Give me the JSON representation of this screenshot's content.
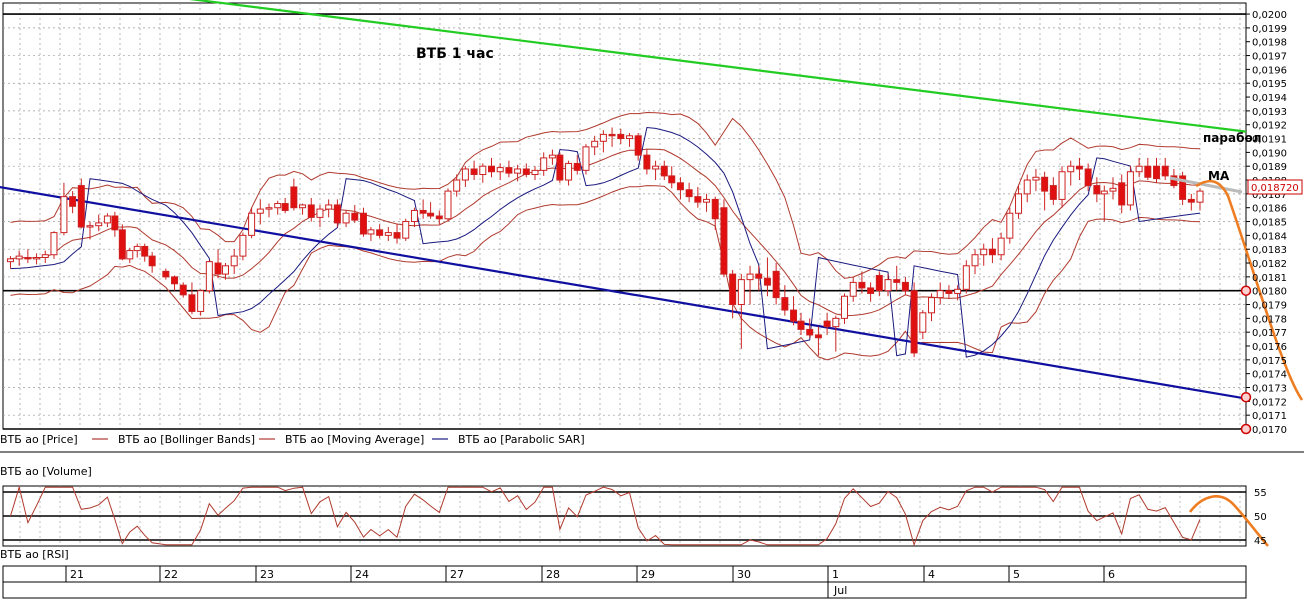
{
  "chart_data": {
    "type": "candlestick",
    "title": "ВТБ   1 час",
    "price_axis": {
      "ylim": [
        0.017,
        0.02008
      ],
      "tick_labels": [
        "0,0200",
        "0,0199",
        "0,0198",
        "0,0197",
        "0,0196",
        "0,0195",
        "0,0194",
        "0,0193",
        "0,0192",
        "0,0191",
        "0,0190",
        "0,0189",
        "0,0188",
        "0,0187",
        "0,0186",
        "0,0185",
        "0,0184",
        "0,0183",
        "0,0182",
        "0,0181",
        "0,0180",
        "0,0179",
        "0,0178",
        "0,0177",
        "0,0176",
        "0,0175",
        "0,0174",
        "0,0173",
        "0,0172",
        "0,0171",
        "0,0170"
      ],
      "current_price_label": "0,018720",
      "current_price": 0.01872
    },
    "horizontal_levels": [
      0.02,
      0.018,
      0.017
    ],
    "trendlines": [
      {
        "color": "#22cc22",
        "from": [
          -0.01,
          0.02029
        ],
        "to": [
          1.0,
          0.01915
        ]
      },
      {
        "color": "#1010a0",
        "from": [
          -0.01,
          0.01876
        ],
        "to": [
          1.0,
          0.01722
        ]
      }
    ],
    "annotations": [
      {
        "text": "парабол",
        "price": 0.01907
      },
      {
        "text": "MA",
        "price": 0.01888
      }
    ],
    "legend": [
      {
        "label": "ВТБ ао [Price]",
        "color": "#cc3333"
      },
      {
        "label": "ВТБ ао [Bollinger Bands]",
        "color": "#b03a2e"
      },
      {
        "label": "ВТБ ао [Moving Average]",
        "color": "#b03a2e"
      },
      {
        "label": "ВТБ ао [Parabolic SAR]",
        "color": "#1a1a80"
      }
    ],
    "volume_pane_label": "ВТБ ао [Volume]",
    "rsi_pane_label": "ВТБ ао [RSI]",
    "rsi_axis": {
      "ylim": [
        45,
        55
      ],
      "tick_labels": [
        "55",
        "50",
        "45"
      ]
    },
    "rsi_levels": [
      55,
      50,
      45
    ],
    "x_labels": [
      "21",
      "22",
      "23",
      "24",
      "27",
      "28",
      "29",
      "30",
      "1",
      "4",
      "5",
      "6"
    ],
    "x_sub_label": "Jul",
    "candles": [
      {
        "x": 0.006,
        "o": 0.01821,
        "h": 0.01825,
        "l": 0.01816,
        "c": 0.01823
      },
      {
        "x": 0.013,
        "o": 0.01823,
        "h": 0.01829,
        "l": 0.01818,
        "c": 0.01825
      },
      {
        "x": 0.02,
        "o": 0.01824,
        "h": 0.0183,
        "l": 0.0182,
        "c": 0.01823
      },
      {
        "x": 0.027,
        "o": 0.01823,
        "h": 0.01827,
        "l": 0.01819,
        "c": 0.01824
      },
      {
        "x": 0.034,
        "o": 0.01824,
        "h": 0.01829,
        "l": 0.0182,
        "c": 0.01826
      },
      {
        "x": 0.041,
        "o": 0.01826,
        "h": 0.01843,
        "l": 0.01823,
        "c": 0.01842
      },
      {
        "x": 0.049,
        "o": 0.01842,
        "h": 0.01878,
        "l": 0.0184,
        "c": 0.01868
      },
      {
        "x": 0.056,
        "o": 0.01868,
        "h": 0.01872,
        "l": 0.01856,
        "c": 0.01861
      },
      {
        "x": 0.063,
        "o": 0.01876,
        "h": 0.01881,
        "l": 0.01845,
        "c": 0.01846
      },
      {
        "x": 0.07,
        "o": 0.01846,
        "h": 0.0185,
        "l": 0.01837,
        "c": 0.01847
      },
      {
        "x": 0.077,
        "o": 0.01847,
        "h": 0.01855,
        "l": 0.01843,
        "c": 0.01849
      },
      {
        "x": 0.084,
        "o": 0.01849,
        "h": 0.01856,
        "l": 0.01846,
        "c": 0.01854
      },
      {
        "x": 0.09,
        "o": 0.01854,
        "h": 0.01857,
        "l": 0.01839,
        "c": 0.01844
      },
      {
        "x": 0.096,
        "o": 0.01844,
        "h": 0.01848,
        "l": 0.01822,
        "c": 0.01823
      },
      {
        "x": 0.102,
        "o": 0.01823,
        "h": 0.01831,
        "l": 0.0182,
        "c": 0.01829
      },
      {
        "x": 0.108,
        "o": 0.01829,
        "h": 0.01834,
        "l": 0.01824,
        "c": 0.01832
      },
      {
        "x": 0.114,
        "o": 0.01832,
        "h": 0.01834,
        "l": 0.01821,
        "c": 0.01825
      },
      {
        "x": 0.12,
        "o": 0.01825,
        "h": 0.01828,
        "l": 0.01813,
        "c": 0.01818
      },
      {
        "x": 0.131,
        "o": 0.01814,
        "h": 0.01816,
        "l": 0.01808,
        "c": 0.0181
      },
      {
        "x": 0.138,
        "o": 0.0181,
        "h": 0.01811,
        "l": 0.018,
        "c": 0.01805
      },
      {
        "x": 0.145,
        "o": 0.01804,
        "h": 0.01806,
        "l": 0.01795,
        "c": 0.01797
      },
      {
        "x": 0.152,
        "o": 0.01797,
        "h": 0.01806,
        "l": 0.01783,
        "c": 0.01785
      },
      {
        "x": 0.159,
        "o": 0.01785,
        "h": 0.01801,
        "l": 0.01782,
        "c": 0.018
      },
      {
        "x": 0.166,
        "o": 0.018,
        "h": 0.01822,
        "l": 0.01798,
        "c": 0.01821
      },
      {
        "x": 0.173,
        "o": 0.0182,
        "h": 0.0183,
        "l": 0.01809,
        "c": 0.01812
      },
      {
        "x": 0.179,
        "o": 0.01812,
        "h": 0.0182,
        "l": 0.01808,
        "c": 0.01818
      },
      {
        "x": 0.186,
        "o": 0.01818,
        "h": 0.0183,
        "l": 0.01812,
        "c": 0.01825
      },
      {
        "x": 0.193,
        "o": 0.01825,
        "h": 0.01842,
        "l": 0.01822,
        "c": 0.0184
      },
      {
        "x": 0.2,
        "o": 0.0184,
        "h": 0.0186,
        "l": 0.01838,
        "c": 0.01856
      },
      {
        "x": 0.207,
        "o": 0.01856,
        "h": 0.01866,
        "l": 0.01848,
        "c": 0.01859
      },
      {
        "x": 0.214,
        "o": 0.01859,
        "h": 0.01863,
        "l": 0.01853,
        "c": 0.0186
      },
      {
        "x": 0.221,
        "o": 0.0186,
        "h": 0.01865,
        "l": 0.01855,
        "c": 0.01863
      },
      {
        "x": 0.227,
        "o": 0.01863,
        "h": 0.01867,
        "l": 0.01856,
        "c": 0.01858
      },
      {
        "x": 0.234,
        "o": 0.01875,
        "h": 0.01881,
        "l": 0.01858,
        "c": 0.0186
      },
      {
        "x": 0.241,
        "o": 0.0186,
        "h": 0.01863,
        "l": 0.01855,
        "c": 0.01862
      },
      {
        "x": 0.248,
        "o": 0.01862,
        "h": 0.01867,
        "l": 0.0185,
        "c": 0.01853
      },
      {
        "x": 0.255,
        "o": 0.01853,
        "h": 0.01862,
        "l": 0.01846,
        "c": 0.01859
      },
      {
        "x": 0.262,
        "o": 0.01859,
        "h": 0.01866,
        "l": 0.01853,
        "c": 0.01862
      },
      {
        "x": 0.269,
        "o": 0.01862,
        "h": 0.01866,
        "l": 0.01846,
        "c": 0.01849
      },
      {
        "x": 0.276,
        "o": 0.01849,
        "h": 0.01858,
        "l": 0.01846,
        "c": 0.01856
      },
      {
        "x": 0.283,
        "o": 0.01856,
        "h": 0.01862,
        "l": 0.01849,
        "c": 0.01851
      },
      {
        "x": 0.29,
        "o": 0.01856,
        "h": 0.0186,
        "l": 0.01839,
        "c": 0.01841
      },
      {
        "x": 0.296,
        "o": 0.01841,
        "h": 0.01846,
        "l": 0.01836,
        "c": 0.01844
      },
      {
        "x": 0.303,
        "o": 0.01844,
        "h": 0.01848,
        "l": 0.01838,
        "c": 0.0184
      },
      {
        "x": 0.31,
        "o": 0.0184,
        "h": 0.01846,
        "l": 0.01836,
        "c": 0.01842
      },
      {
        "x": 0.317,
        "o": 0.01842,
        "h": 0.01848,
        "l": 0.01834,
        "c": 0.01838
      },
      {
        "x": 0.324,
        "o": 0.01838,
        "h": 0.01852,
        "l": 0.01836,
        "c": 0.0185
      },
      {
        "x": 0.331,
        "o": 0.0185,
        "h": 0.0186,
        "l": 0.01846,
        "c": 0.01858
      },
      {
        "x": 0.338,
        "o": 0.01858,
        "h": 0.01866,
        "l": 0.01852,
        "c": 0.01856
      },
      {
        "x": 0.344,
        "o": 0.01856,
        "h": 0.01864,
        "l": 0.01852,
        "c": 0.01854
      },
      {
        "x": 0.351,
        "o": 0.01854,
        "h": 0.01858,
        "l": 0.01848,
        "c": 0.01852
      },
      {
        "x": 0.358,
        "o": 0.01852,
        "h": 0.01874,
        "l": 0.0185,
        "c": 0.01872
      },
      {
        "x": 0.365,
        "o": 0.01872,
        "h": 0.01884,
        "l": 0.01868,
        "c": 0.0188
      },
      {
        "x": 0.372,
        "o": 0.0188,
        "h": 0.0189,
        "l": 0.01875,
        "c": 0.01888
      },
      {
        "x": 0.379,
        "o": 0.01888,
        "h": 0.01894,
        "l": 0.0188,
        "c": 0.01884
      },
      {
        "x": 0.386,
        "o": 0.01884,
        "h": 0.01892,
        "l": 0.01878,
        "c": 0.0189
      },
      {
        "x": 0.393,
        "o": 0.0189,
        "h": 0.01896,
        "l": 0.01882,
        "c": 0.01886
      },
      {
        "x": 0.4,
        "o": 0.01886,
        "h": 0.01892,
        "l": 0.0188,
        "c": 0.01889
      },
      {
        "x": 0.407,
        "o": 0.01889,
        "h": 0.01894,
        "l": 0.01882,
        "c": 0.01885
      },
      {
        "x": 0.414,
        "o": 0.01885,
        "h": 0.01891,
        "l": 0.01879,
        "c": 0.01888
      },
      {
        "x": 0.421,
        "o": 0.01888,
        "h": 0.01892,
        "l": 0.01882,
        "c": 0.01884
      },
      {
        "x": 0.428,
        "o": 0.01884,
        "h": 0.0189,
        "l": 0.0188,
        "c": 0.01887
      },
      {
        "x": 0.435,
        "o": 0.01887,
        "h": 0.019,
        "l": 0.01883,
        "c": 0.01896
      },
      {
        "x": 0.442,
        "o": 0.01896,
        "h": 0.01902,
        "l": 0.01891,
        "c": 0.01898
      },
      {
        "x": 0.448,
        "o": 0.01898,
        "h": 0.019,
        "l": 0.01878,
        "c": 0.0188
      },
      {
        "x": 0.455,
        "o": 0.0188,
        "h": 0.01894,
        "l": 0.01876,
        "c": 0.01892
      },
      {
        "x": 0.462,
        "o": 0.01892,
        "h": 0.01898,
        "l": 0.01884,
        "c": 0.01887
      },
      {
        "x": 0.469,
        "o": 0.01887,
        "h": 0.01906,
        "l": 0.01884,
        "c": 0.01904
      },
      {
        "x": 0.476,
        "o": 0.01904,
        "h": 0.01912,
        "l": 0.01898,
        "c": 0.01908
      },
      {
        "x": 0.483,
        "o": 0.01908,
        "h": 0.01916,
        "l": 0.019,
        "c": 0.01913
      },
      {
        "x": 0.49,
        "o": 0.01913,
        "h": 0.01918,
        "l": 0.01904,
        "c": 0.01912
      },
      {
        "x": 0.497,
        "o": 0.01913,
        "h": 0.01917,
        "l": 0.01906,
        "c": 0.0191
      },
      {
        "x": 0.504,
        "o": 0.0191,
        "h": 0.01914,
        "l": 0.01904,
        "c": 0.01912
      },
      {
        "x": 0.511,
        "o": 0.01912,
        "h": 0.01914,
        "l": 0.01894,
        "c": 0.01898
      },
      {
        "x": 0.518,
        "o": 0.01898,
        "h": 0.01902,
        "l": 0.01884,
        "c": 0.01888
      },
      {
        "x": 0.525,
        "o": 0.01888,
        "h": 0.01894,
        "l": 0.0188,
        "c": 0.0189
      },
      {
        "x": 0.532,
        "o": 0.0189,
        "h": 0.01894,
        "l": 0.0188,
        "c": 0.01883
      },
      {
        "x": 0.538,
        "o": 0.01883,
        "h": 0.0189,
        "l": 0.01874,
        "c": 0.01878
      },
      {
        "x": 0.545,
        "o": 0.01878,
        "h": 0.01882,
        "l": 0.01866,
        "c": 0.01873
      },
      {
        "x": 0.552,
        "o": 0.01873,
        "h": 0.01878,
        "l": 0.01864,
        "c": 0.01868
      },
      {
        "x": 0.559,
        "o": 0.01868,
        "h": 0.01875,
        "l": 0.0186,
        "c": 0.01864
      },
      {
        "x": 0.566,
        "o": 0.01864,
        "h": 0.0187,
        "l": 0.01857,
        "c": 0.01866
      },
      {
        "x": 0.573,
        "o": 0.01866,
        "h": 0.01868,
        "l": 0.01844,
        "c": 0.01852
      },
      {
        "x": 0.58,
        "o": 0.0186,
        "h": 0.01866,
        "l": 0.0181,
        "c": 0.01812
      },
      {
        "x": 0.587,
        "o": 0.01812,
        "h": 0.01815,
        "l": 0.0178,
        "c": 0.0179
      },
      {
        "x": 0.594,
        "o": 0.0179,
        "h": 0.01812,
        "l": 0.01758,
        "c": 0.01808
      },
      {
        "x": 0.601,
        "o": 0.01808,
        "h": 0.01818,
        "l": 0.0179,
        "c": 0.01812
      },
      {
        "x": 0.608,
        "o": 0.01812,
        "h": 0.01818,
        "l": 0.018,
        "c": 0.01809
      },
      {
        "x": 0.615,
        "o": 0.01809,
        "h": 0.01824,
        "l": 0.01796,
        "c": 0.01804
      },
      {
        "x": 0.622,
        "o": 0.01814,
        "h": 0.0182,
        "l": 0.0179,
        "c": 0.01795
      },
      {
        "x": 0.629,
        "o": 0.01795,
        "h": 0.01804,
        "l": 0.01782,
        "c": 0.01786
      },
      {
        "x": 0.636,
        "o": 0.01786,
        "h": 0.01796,
        "l": 0.01775,
        "c": 0.01778
      },
      {
        "x": 0.642,
        "o": 0.01778,
        "h": 0.01784,
        "l": 0.01768,
        "c": 0.01772
      },
      {
        "x": 0.649,
        "o": 0.01772,
        "h": 0.0178,
        "l": 0.01766,
        "c": 0.01768
      },
      {
        "x": 0.656,
        "o": 0.01768,
        "h": 0.01774,
        "l": 0.01753,
        "c": 0.01766
      },
      {
        "x": 0.663,
        "o": 0.01778,
        "h": 0.01784,
        "l": 0.01768,
        "c": 0.01774
      },
      {
        "x": 0.67,
        "o": 0.01774,
        "h": 0.01782,
        "l": 0.01756,
        "c": 0.0178
      },
      {
        "x": 0.677,
        "o": 0.0178,
        "h": 0.01798,
        "l": 0.01776,
        "c": 0.01796
      },
      {
        "x": 0.684,
        "o": 0.01796,
        "h": 0.0181,
        "l": 0.01792,
        "c": 0.01806
      },
      {
        "x": 0.691,
        "o": 0.01806,
        "h": 0.01814,
        "l": 0.01798,
        "c": 0.01802
      },
      {
        "x": 0.698,
        "o": 0.01802,
        "h": 0.01806,
        "l": 0.01792,
        "c": 0.01798
      },
      {
        "x": 0.705,
        "o": 0.01811,
        "h": 0.01814,
        "l": 0.01796,
        "c": 0.018
      },
      {
        "x": 0.712,
        "o": 0.018,
        "h": 0.01812,
        "l": 0.01796,
        "c": 0.01808
      },
      {
        "x": 0.719,
        "o": 0.01808,
        "h": 0.01818,
        "l": 0.018,
        "c": 0.01806
      },
      {
        "x": 0.726,
        "o": 0.01806,
        "h": 0.0181,
        "l": 0.01797,
        "c": 0.018
      },
      {
        "x": 0.733,
        "o": 0.018,
        "h": 0.01806,
        "l": 0.01752,
        "c": 0.01755
      },
      {
        "x": 0.74,
        "o": 0.0177,
        "h": 0.01786,
        "l": 0.01765,
        "c": 0.01784
      },
      {
        "x": 0.747,
        "o": 0.01784,
        "h": 0.01798,
        "l": 0.01778,
        "c": 0.01795
      },
      {
        "x": 0.754,
        "o": 0.01795,
        "h": 0.01806,
        "l": 0.0179,
        "c": 0.018
      },
      {
        "x": 0.761,
        "o": 0.018,
        "h": 0.01804,
        "l": 0.01794,
        "c": 0.01798
      },
      {
        "x": 0.768,
        "o": 0.01798,
        "h": 0.01804,
        "l": 0.01793,
        "c": 0.01801
      },
      {
        "x": 0.775,
        "o": 0.01801,
        "h": 0.01822,
        "l": 0.01798,
        "c": 0.01818
      },
      {
        "x": 0.782,
        "o": 0.01818,
        "h": 0.0183,
        "l": 0.01812,
        "c": 0.01826
      },
      {
        "x": 0.789,
        "o": 0.01826,
        "h": 0.01834,
        "l": 0.01818,
        "c": 0.0183
      },
      {
        "x": 0.796,
        "o": 0.0183,
        "h": 0.01838,
        "l": 0.0182,
        "c": 0.01826
      },
      {
        "x": 0.803,
        "o": 0.01826,
        "h": 0.01842,
        "l": 0.01822,
        "c": 0.01838
      },
      {
        "x": 0.81,
        "o": 0.01838,
        "h": 0.0186,
        "l": 0.01834,
        "c": 0.01856
      },
      {
        "x": 0.817,
        "o": 0.01856,
        "h": 0.01876,
        "l": 0.01852,
        "c": 0.0187
      },
      {
        "x": 0.824,
        "o": 0.0187,
        "h": 0.01884,
        "l": 0.01864,
        "c": 0.0188
      },
      {
        "x": 0.831,
        "o": 0.0188,
        "h": 0.01888,
        "l": 0.01872,
        "c": 0.01882
      },
      {
        "x": 0.838,
        "o": 0.01882,
        "h": 0.01886,
        "l": 0.01858,
        "c": 0.01872
      },
      {
        "x": 0.845,
        "o": 0.01876,
        "h": 0.01882,
        "l": 0.01862,
        "c": 0.01866
      },
      {
        "x": 0.852,
        "o": 0.01866,
        "h": 0.0189,
        "l": 0.0186,
        "c": 0.01886
      },
      {
        "x": 0.859,
        "o": 0.01886,
        "h": 0.01894,
        "l": 0.01876,
        "c": 0.0189
      },
      {
        "x": 0.866,
        "o": 0.0189,
        "h": 0.01896,
        "l": 0.0188,
        "c": 0.01888
      },
      {
        "x": 0.873,
        "o": 0.01888,
        "h": 0.01892,
        "l": 0.01872,
        "c": 0.01876
      },
      {
        "x": 0.88,
        "o": 0.01876,
        "h": 0.01882,
        "l": 0.01864,
        "c": 0.0187
      },
      {
        "x": 0.886,
        "o": 0.0187,
        "h": 0.01876,
        "l": 0.0185,
        "c": 0.01872
      },
      {
        "x": 0.893,
        "o": 0.01872,
        "h": 0.01882,
        "l": 0.01866,
        "c": 0.01874
      },
      {
        "x": 0.9,
        "o": 0.01878,
        "h": 0.01884,
        "l": 0.01856,
        "c": 0.01862
      },
      {
        "x": 0.907,
        "o": 0.01862,
        "h": 0.0189,
        "l": 0.01858,
        "c": 0.01886
      },
      {
        "x": 0.914,
        "o": 0.01886,
        "h": 0.01896,
        "l": 0.01882,
        "c": 0.0189
      },
      {
        "x": 0.921,
        "o": 0.0189,
        "h": 0.01896,
        "l": 0.0188,
        "c": 0.01882
      },
      {
        "x": 0.928,
        "o": 0.0189,
        "h": 0.01896,
        "l": 0.01878,
        "c": 0.01881
      },
      {
        "x": 0.935,
        "o": 0.0189,
        "h": 0.01896,
        "l": 0.0188,
        "c": 0.01883
      },
      {
        "x": 0.942,
        "o": 0.01883,
        "h": 0.01888,
        "l": 0.01874,
        "c": 0.01876
      },
      {
        "x": 0.949,
        "o": 0.01883,
        "h": 0.01886,
        "l": 0.01862,
        "c": 0.01866
      },
      {
        "x": 0.956,
        "o": 0.01866,
        "h": 0.0187,
        "l": 0.01858,
        "c": 0.01864
      },
      {
        "x": 0.963,
        "o": 0.01864,
        "h": 0.01874,
        "l": 0.01858,
        "c": 0.01872
      }
    ]
  }
}
